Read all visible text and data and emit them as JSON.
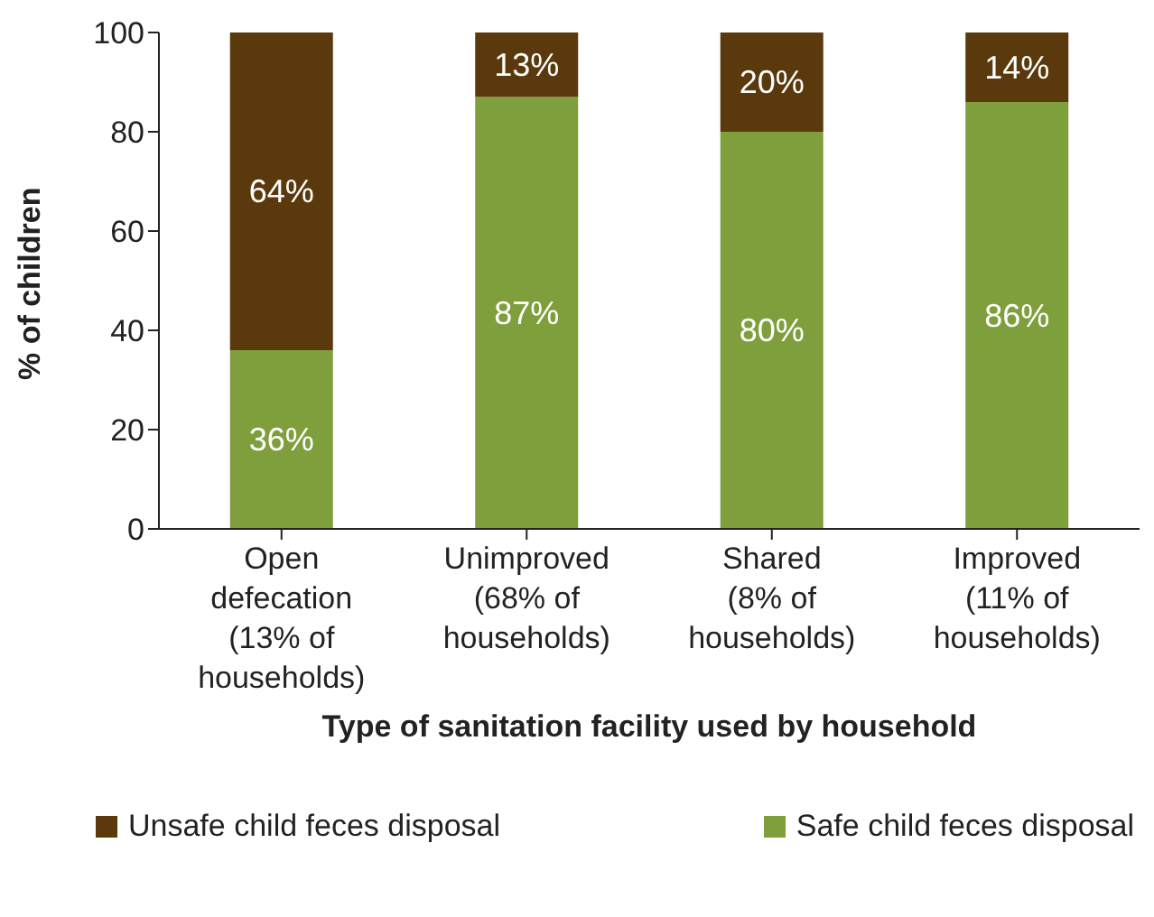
{
  "chart_data": {
    "type": "bar",
    "stacked": true,
    "xlabel": "Type of sanitation facility used by household",
    "ylabel": "% of children",
    "categories": [
      "Open defecation (13% of households)",
      "Unimproved (68% of households)",
      "Shared (8% of households)",
      "Improved (11% of households)"
    ],
    "series": [
      {
        "name": "Safe child feces disposal",
        "color": "#7f9f3d",
        "values": [
          36,
          87,
          80,
          86
        ],
        "value_labels": [
          "36%",
          "87%",
          "80%",
          "86%"
        ]
      },
      {
        "name": "Unsafe child feces disposal",
        "color": "#5a3a0c",
        "values": [
          64,
          13,
          20,
          14
        ],
        "value_labels": [
          "64%",
          "13%",
          "20%",
          "14%"
        ]
      }
    ],
    "ylim": [
      0,
      100
    ],
    "yticks": [
      0,
      20,
      40,
      60,
      80,
      100
    ],
    "grid": false,
    "legend": "bottom"
  }
}
